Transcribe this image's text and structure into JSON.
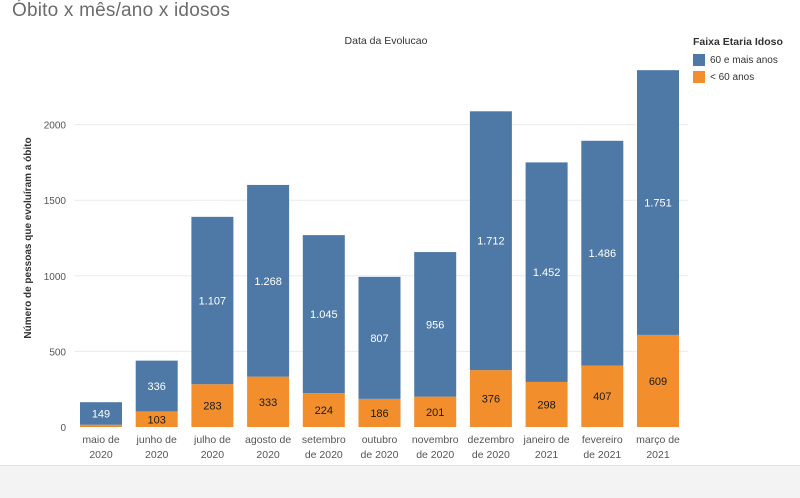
{
  "page_title": "Óbito x mês/ano x idosos",
  "legend": {
    "title": "Faixa Etaria Idoso",
    "items": [
      {
        "label": "60 e mais anos",
        "color": "#4e79a7"
      },
      {
        "label": "< 60 anos",
        "color": "#f28e2b"
      }
    ]
  },
  "chart_data": {
    "type": "bar",
    "stacked": true,
    "title": "Data da Evolucao",
    "xlabel": "",
    "ylabel": "Número de pessoas que evoluíram a óbito",
    "ylim": [
      0,
      2500
    ],
    "yticks": [
      0,
      500,
      1000,
      1500,
      2000
    ],
    "grid": true,
    "categories": [
      [
        "maio de",
        "2020"
      ],
      [
        "junho de",
        "2020"
      ],
      [
        "julho de",
        "2020"
      ],
      [
        "agosto de",
        "2020"
      ],
      [
        "setembro",
        "de 2020"
      ],
      [
        "outubro",
        "de 2020"
      ],
      [
        "novembro",
        "de 2020"
      ],
      [
        "dezembro",
        "de 2020"
      ],
      [
        "janeiro de",
        "2021"
      ],
      [
        "fevereiro",
        "de 2021"
      ],
      [
        "março de",
        "2021"
      ]
    ],
    "series": [
      {
        "name": "< 60 anos",
        "color": "#f28e2b",
        "values": [
          15,
          103,
          283,
          333,
          224,
          186,
          201,
          376,
          298,
          407,
          609
        ],
        "labels": [
          "",
          "103",
          "283",
          "333",
          "224",
          "186",
          "201",
          "376",
          "298",
          "407",
          "609"
        ]
      },
      {
        "name": "60 e mais anos",
        "color": "#4e79a7",
        "values": [
          149,
          336,
          1107,
          1268,
          1045,
          807,
          956,
          1712,
          1452,
          1486,
          1751
        ],
        "labels": [
          "149",
          "336",
          "1.107",
          "1.268",
          "1.045",
          "807",
          "956",
          "1.712",
          "1.452",
          "1.486",
          "1.751"
        ]
      }
    ]
  }
}
